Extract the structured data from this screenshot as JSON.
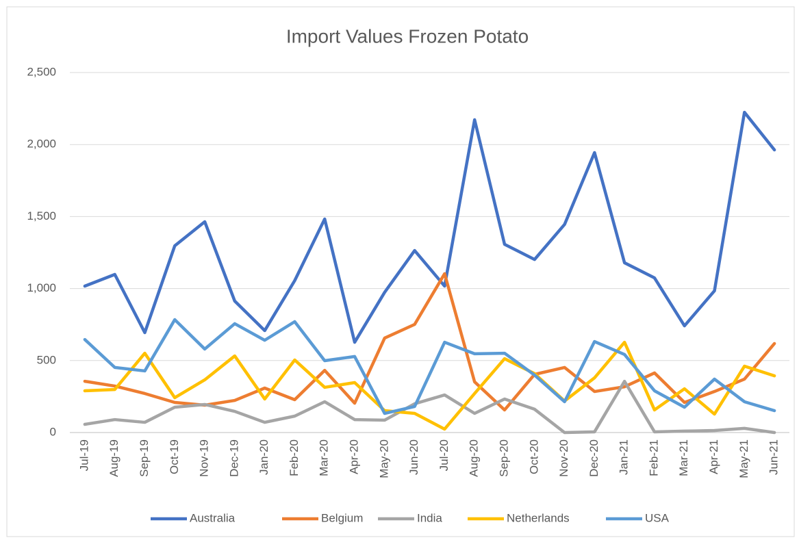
{
  "chart_data": {
    "type": "line",
    "title": "Import Values  Frozen Potato",
    "categories": [
      "Jul-19",
      "Aug-19",
      "Sep-19",
      "Oct-19",
      "Nov-19",
      "Dec-19",
      "Jan-20",
      "Feb-20",
      "Mar-20",
      "Apr-20",
      "May-20",
      "Jun-20",
      "Jul-20",
      "Aug-20",
      "Sep-20",
      "Oct-20",
      "Nov-20",
      "Dec-20",
      "Jan-21",
      "Feb-21",
      "Mar-21",
      "Apr-21",
      "May-21",
      "Jun-21"
    ],
    "series": [
      {
        "name": "Australia",
        "color": "#4472c4",
        "values": [
          1017,
          1098,
          694,
          1297,
          1464,
          913,
          708,
          1055,
          1483,
          627,
          974,
          1264,
          1017,
          2172,
          1307,
          1202,
          1445,
          1944,
          1179,
          1074,
          741,
          984,
          2224,
          1963
        ]
      },
      {
        "name": "Belgium",
        "color": "#ed7d31",
        "values": [
          356,
          323,
          271,
          209,
          190,
          223,
          309,
          228,
          432,
          204,
          656,
          751,
          1103,
          352,
          157,
          404,
          452,
          285,
          318,
          414,
          209,
          285,
          371,
          618
        ]
      },
      {
        "name": "India",
        "color": "#a5a5a5",
        "values": [
          57,
          90,
          71,
          176,
          195,
          147,
          71,
          114,
          214,
          90,
          86,
          200,
          261,
          133,
          233,
          162,
          0,
          5,
          356,
          5,
          10,
          14,
          29,
          0
        ]
      },
      {
        "name": "Netherlands",
        "color": "#ffc000",
        "values": [
          290,
          299,
          551,
          242,
          366,
          532,
          233,
          504,
          314,
          347,
          152,
          133,
          24,
          271,
          513,
          409,
          219,
          380,
          627,
          157,
          304,
          128,
          461,
          394
        ]
      },
      {
        "name": "USA",
        "color": "#5b9bd5",
        "values": [
          646,
          452,
          428,
          784,
          580,
          756,
          641,
          770,
          499,
          528,
          133,
          181,
          627,
          547,
          551,
          399,
          214,
          632,
          542,
          290,
          176,
          371,
          214,
          152
        ]
      }
    ],
    "ylim": [
      0,
      2500
    ],
    "yticks": [
      0,
      500,
      {
        "value": 1000,
        "label": "1,000"
      },
      {
        "value": 1500,
        "label": "1,500"
      },
      {
        "value": 2000,
        "label": "2,000"
      },
      {
        "value": 2500,
        "label": "2,500"
      }
    ],
    "grid": true,
    "legend": "bottom"
  }
}
